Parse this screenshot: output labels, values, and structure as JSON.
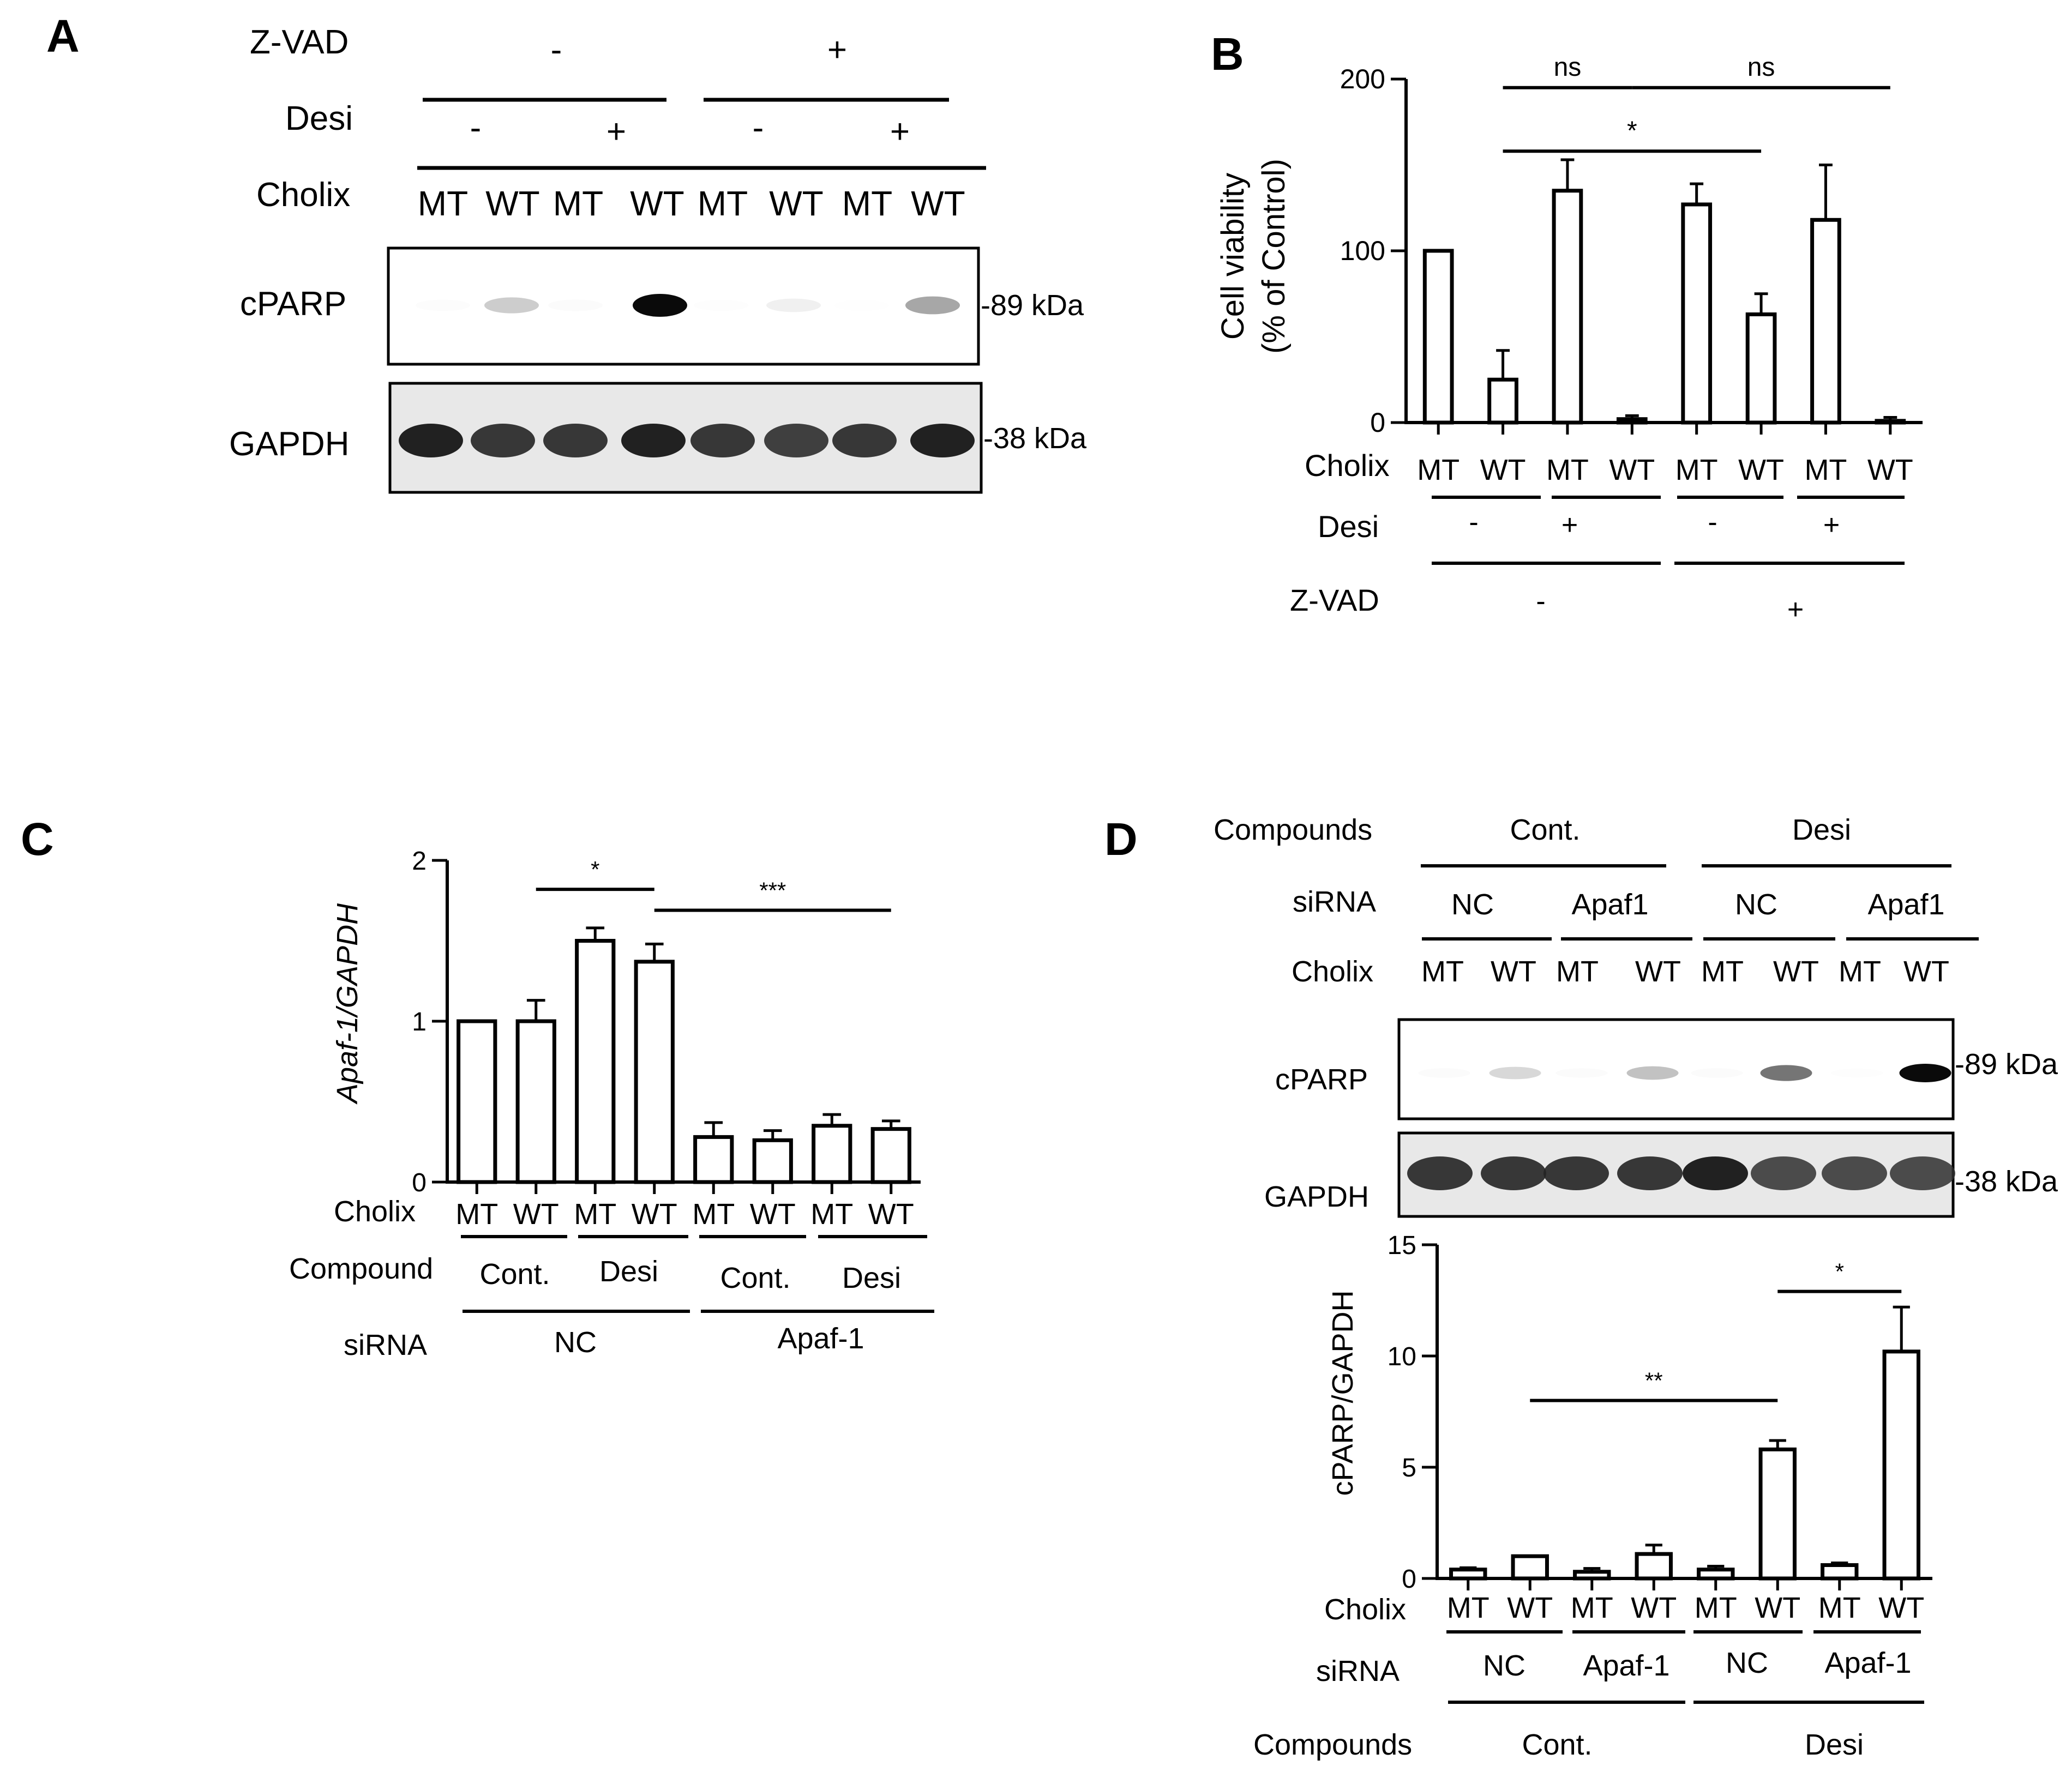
{
  "panel_letters": {
    "a": "A",
    "b": "B",
    "c": "C",
    "d": "D"
  },
  "units": {
    "kda89": "-89 kDa",
    "kda38": "-38 kDa"
  },
  "panelA": {
    "row_labels": {
      "zvad": "Z-VAD",
      "desi": "Desi",
      "cholix": "Cholix"
    },
    "zvad_signs": [
      "-",
      "+"
    ],
    "desi_signs": [
      "-",
      "+",
      "-",
      "+"
    ],
    "cholix_lanes": [
      "MT",
      "WT",
      "MT",
      "WT",
      "MT",
      "WT",
      "MT",
      "WT"
    ],
    "blots": [
      {
        "label": "cPARP",
        "marker": "-89 kDa",
        "band_intensity": [
          0.08,
          0.45,
          0.1,
          1.0,
          0.06,
          0.25,
          0.04,
          0.6
        ]
      },
      {
        "label": "GAPDH",
        "marker": "-38 kDa",
        "band_intensity": [
          0.95,
          0.9,
          0.9,
          0.95,
          0.9,
          0.88,
          0.9,
          0.95
        ]
      }
    ]
  },
  "panelC_labels": {
    "row_cholix": "Cholix",
    "row_compound": "Compound",
    "row_sirna": "siRNA",
    "compound_groups": [
      "Cont.",
      "Desi",
      "Cont.",
      "Desi"
    ],
    "sirna_groups": [
      "NC",
      "Apaf-1"
    ]
  },
  "panelB_labels": {
    "row_cholix": "Cholix",
    "row_desi": "Desi",
    "row_zvad": "Z-VAD",
    "desi_signs": [
      "-",
      "+",
      "-",
      "+"
    ],
    "zvad_signs": [
      "-",
      "+"
    ]
  },
  "panelD": {
    "header": {
      "compounds": "Compounds",
      "sirna": "siRNA",
      "cholix": "Cholix",
      "compound_groups": [
        "Cont.",
        "Desi"
      ],
      "sirna_groups": [
        "NC",
        "Apaf1",
        "NC",
        "Apaf1"
      ],
      "cholix_lanes": [
        "MT",
        "WT",
        "MT",
        "WT",
        "MT",
        "WT",
        "MT",
        "WT"
      ]
    },
    "blots": [
      {
        "label": "cPARP",
        "marker": "-89 kDa",
        "band_intensity": [
          0.12,
          0.4,
          0.1,
          0.5,
          0.12,
          0.75,
          0.05,
          1.0
        ]
      },
      {
        "label": "GAPDH",
        "marker": "-38 kDa",
        "band_intensity": [
          0.9,
          0.9,
          0.9,
          0.9,
          0.95,
          0.85,
          0.85,
          0.85
        ]
      }
    ],
    "bottom_labels": {
      "row_cholix": "Cholix",
      "row_sirna": "siRNA",
      "row_compounds": "Compounds",
      "sirna_groups": [
        "NC",
        "Apaf-1",
        "NC",
        "Apaf-1"
      ],
      "compound_groups": [
        "Cont.",
        "Desi"
      ]
    }
  },
  "chart_data": [
    {
      "id": "B",
      "type": "bar",
      "title": "",
      "ylabel": "Cell viability",
      "ylabel2": "(% of Control)",
      "xlabel": "",
      "ylim": [
        0,
        200
      ],
      "yticks": [
        0,
        100,
        200
      ],
      "categories": [
        "MT",
        "WT",
        "MT",
        "WT",
        "MT",
        "WT",
        "MT",
        "WT"
      ],
      "values": [
        100,
        25,
        135,
        2,
        127,
        63,
        118,
        1
      ],
      "errors": [
        0,
        17,
        18,
        2,
        12,
        12,
        32,
        2
      ],
      "significance": [
        {
          "from": 1,
          "to": 3,
          "label": "ns",
          "level": 195
        },
        {
          "from": 3,
          "to": 7,
          "label": "ns",
          "level": 195
        },
        {
          "from": 1,
          "to": 5,
          "label": "*",
          "level": 158
        }
      ]
    },
    {
      "id": "C",
      "type": "bar",
      "title": "",
      "ylabel": "Apaf-1/GAPDH",
      "xlabel": "",
      "ylim": [
        0,
        2
      ],
      "yticks": [
        0,
        1,
        2
      ],
      "categories": [
        "MT",
        "WT",
        "MT",
        "WT",
        "MT",
        "WT",
        "MT",
        "WT"
      ],
      "values": [
        1.0,
        1.0,
        1.5,
        1.37,
        0.28,
        0.26,
        0.35,
        0.33
      ],
      "errors": [
        0,
        0.13,
        0.08,
        0.11,
        0.09,
        0.06,
        0.07,
        0.05
      ],
      "significance": [
        {
          "from": 1,
          "to": 3,
          "label": "*",
          "level": 1.82
        },
        {
          "from": 3,
          "to": 7,
          "label": "***",
          "level": 1.69
        }
      ]
    },
    {
      "id": "D",
      "type": "bar",
      "title": "",
      "ylabel": "cPARP/GAPDH",
      "xlabel": "",
      "ylim": [
        0,
        15
      ],
      "yticks": [
        0,
        5,
        10,
        15
      ],
      "categories": [
        "MT",
        "WT",
        "MT",
        "WT",
        "MT",
        "WT",
        "MT",
        "WT"
      ],
      "values": [
        0.4,
        1.0,
        0.3,
        1.1,
        0.4,
        5.8,
        0.6,
        10.2
      ],
      "errors": [
        0.08,
        0,
        0.15,
        0.4,
        0.15,
        0.4,
        0.1,
        2.0
      ],
      "significance": [
        {
          "from": 1,
          "to": 5,
          "label": "**",
          "level": 8.0
        },
        {
          "from": 5,
          "to": 7,
          "label": "*",
          "level": 12.9
        }
      ]
    }
  ]
}
